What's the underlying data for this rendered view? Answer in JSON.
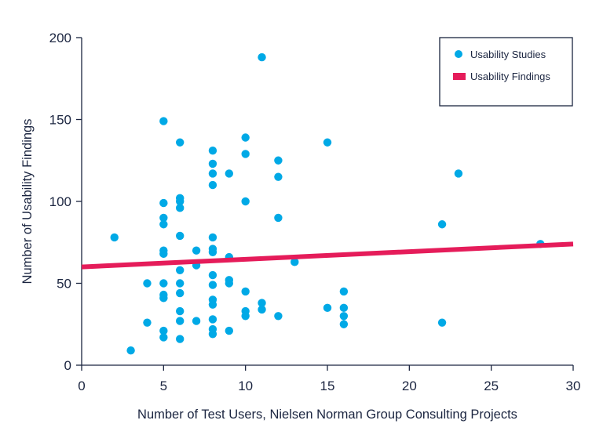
{
  "chart_data": {
    "type": "scatter",
    "title": "",
    "xlabel": "Number of Test Users, Nielsen Norman Group Consulting Projects",
    "ylabel": "Number of Usability Findings",
    "xlim": [
      0,
      30
    ],
    "ylim": [
      0,
      200
    ],
    "xticks": [
      0,
      5,
      10,
      15,
      20,
      25,
      30
    ],
    "yticks": [
      0,
      50,
      100,
      150,
      200
    ],
    "grid": false,
    "legend_position": "top-right",
    "colors": {
      "points": "#00a9e6",
      "trend": "#e51c5a",
      "axis": "#1b2540"
    },
    "series": [
      {
        "name": "Usability Studies",
        "kind": "scatter",
        "points": [
          [
            2,
            78
          ],
          [
            3,
            9
          ],
          [
            4,
            26
          ],
          [
            4,
            50
          ],
          [
            5,
            149
          ],
          [
            5,
            99
          ],
          [
            5,
            90
          ],
          [
            5,
            86
          ],
          [
            5,
            70
          ],
          [
            5,
            68
          ],
          [
            5,
            50
          ],
          [
            5,
            43
          ],
          [
            5,
            41
          ],
          [
            5,
            21
          ],
          [
            5,
            17
          ],
          [
            6,
            136
          ],
          [
            6,
            102
          ],
          [
            6,
            100
          ],
          [
            6,
            96
          ],
          [
            6,
            79
          ],
          [
            6,
            58
          ],
          [
            6,
            50
          ],
          [
            6,
            44
          ],
          [
            6,
            33
          ],
          [
            6,
            27
          ],
          [
            6,
            16
          ],
          [
            7,
            70
          ],
          [
            7,
            61
          ],
          [
            7,
            27
          ],
          [
            8,
            131
          ],
          [
            8,
            123
          ],
          [
            8,
            117
          ],
          [
            8,
            110
          ],
          [
            8,
            78
          ],
          [
            8,
            71
          ],
          [
            8,
            69
          ],
          [
            8,
            55
          ],
          [
            8,
            49
          ],
          [
            8,
            40
          ],
          [
            8,
            37
          ],
          [
            8,
            28
          ],
          [
            8,
            22
          ],
          [
            8,
            19
          ],
          [
            9,
            117
          ],
          [
            9,
            66
          ],
          [
            9,
            52
          ],
          [
            9,
            50
          ],
          [
            9,
            21
          ],
          [
            10,
            139
          ],
          [
            10,
            129
          ],
          [
            10,
            100
          ],
          [
            10,
            45
          ],
          [
            10,
            33
          ],
          [
            10,
            30
          ],
          [
            11,
            188
          ],
          [
            11,
            38
          ],
          [
            11,
            34
          ],
          [
            12,
            125
          ],
          [
            12,
            115
          ],
          [
            12,
            90
          ],
          [
            12,
            30
          ],
          [
            13,
            63
          ],
          [
            15,
            136
          ],
          [
            15,
            35
          ],
          [
            16,
            45
          ],
          [
            16,
            35
          ],
          [
            16,
            30
          ],
          [
            16,
            25
          ],
          [
            22,
            86
          ],
          [
            22,
            26
          ],
          [
            23,
            117
          ],
          [
            28,
            74
          ]
        ]
      },
      {
        "name": "Usability Findings",
        "kind": "line",
        "points": [
          [
            0,
            60
          ],
          [
            30,
            74
          ]
        ]
      }
    ]
  }
}
